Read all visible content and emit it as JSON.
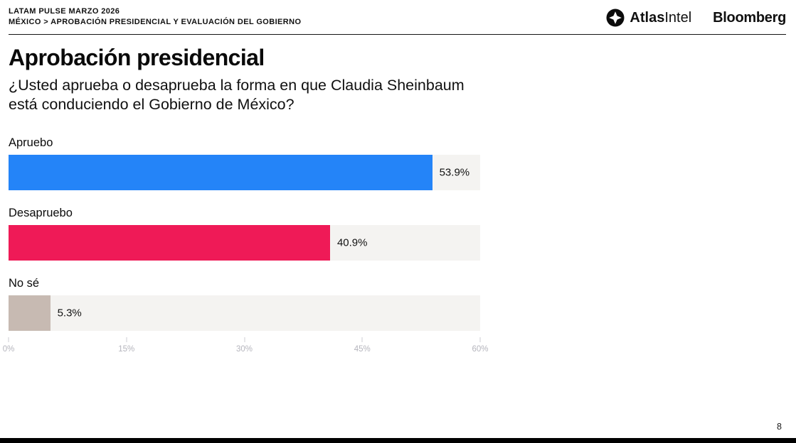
{
  "header": {
    "kicker_line1": "LATAM PULSE MARZO 2026",
    "kicker_line2": "MÉXICO > APROBACIÓN PRESIDENCIAL Y EVALUACIÓN DEL GOBIERNO",
    "atlas_logo_bold": "Atlas",
    "atlas_logo_regular": "Intel",
    "bloomberg_logo": "Bloomberg"
  },
  "title": "Aprobación presidencial",
  "subtitle_line1": "¿Usted aprueba o desaprueba la forma en que Claudia Sheinbaum",
  "subtitle_line2": "está conduciendo el Gobierno de México?",
  "chart_data": {
    "type": "bar",
    "orientation": "horizontal",
    "categories": [
      "Apruebo",
      "Desapruebo",
      "No sé"
    ],
    "values": [
      53.9,
      40.9,
      5.3
    ],
    "value_labels": [
      "53.9%",
      "40.9%",
      "5.3%"
    ],
    "bar_colors": [
      "#2484f8",
      "#ef1a57",
      "#c7bab2"
    ],
    "track_color": "#f4f3f1",
    "xlim": [
      0,
      60
    ],
    "x_ticks": [
      "0%",
      "15%",
      "30%",
      "45%",
      "60%"
    ],
    "x_tick_values": [
      0,
      15,
      30,
      45,
      60
    ],
    "grid": false,
    "legend": "none",
    "title": "Aprobación presidencial"
  },
  "footer": {
    "page_number": "8"
  }
}
